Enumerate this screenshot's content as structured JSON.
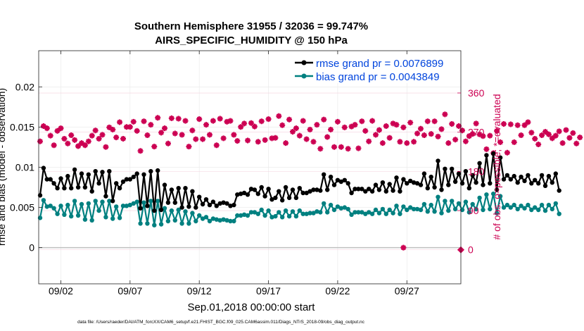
{
  "chart_data": {
    "type": "line",
    "title": "Southern Hemisphere 31955 / 32036 = 99.747%",
    "subtitle": "AIRS_SPECIFIC_HUMIDITY @ 150 hPa",
    "xlabel": "Sep.01,2018 00:00:00 start",
    "ylabel_left": "rmse and bias (model - observation)",
    "ylabel_right": "# of obs: o=possible; *=evaluated",
    "footnote": "data file: /Users/raeder/DAI/ATM_forcXX/CAM6_setup/f.e21.FHIST_BGC.f09_025.CAM6assim.011/Diags_NTrS_2018-09/obs_diag_output.nc",
    "xlim": [
      0.4,
      30.9
    ],
    "ylim_left": [
      -0.0045,
      0.0245
    ],
    "ylim_right": [
      -78,
      457
    ],
    "x_ticks": [
      {
        "label": "09/02",
        "x": 2
      },
      {
        "label": "09/07",
        "x": 7
      },
      {
        "label": "09/12",
        "x": 12
      },
      {
        "label": "09/17",
        "x": 17
      },
      {
        "label": "09/22",
        "x": 22
      },
      {
        "label": "09/27",
        "x": 27
      }
    ],
    "y_ticks_left": [
      {
        "label": "0",
        "v": 0
      },
      {
        "label": "0.005",
        "v": 0.005
      },
      {
        "label": "0.01",
        "v": 0.01
      },
      {
        "label": "0.015",
        "v": 0.015
      },
      {
        "label": "0.02",
        "v": 0.02
      }
    ],
    "y_ticks_right": [
      {
        "label": "0",
        "v": 0
      },
      {
        "label": "90",
        "v": 90
      },
      {
        "label": "180",
        "v": 180
      },
      {
        "label": "270",
        "v": 270
      },
      {
        "label": "360",
        "v": 360
      }
    ],
    "legend": [
      {
        "label": "rmse grand pr = 0.0076899",
        "color": "#000000"
      },
      {
        "label": "bias grand pr = 0.0043849",
        "color": "#008080"
      }
    ],
    "colors": {
      "rmse": "#000000",
      "bias": "#008080",
      "obs": "#cc0052",
      "legend_text": "#0044dd",
      "zero_line": "#c0c0c0"
    },
    "x_start": 0.5,
    "x_step": 0.25,
    "series": [
      {
        "name": "rmse",
        "values": [
          0.0065,
          0.0099,
          0.0085,
          0.0085,
          0.008,
          0.0074,
          0.0086,
          0.0074,
          0.0089,
          0.0074,
          0.0097,
          0.0075,
          0.0092,
          0.0075,
          0.0091,
          0.007,
          0.0095,
          0.008,
          0.0094,
          0.0064,
          0.0095,
          0.0058,
          0.008,
          0.0074,
          0.0082,
          0.0085,
          0.0085,
          0.0088,
          0.0092,
          0.0049,
          0.0091,
          0.0052,
          0.0095,
          0.0046,
          0.0096,
          0.0047,
          0.0078,
          0.0056,
          0.0072,
          0.0056,
          0.0074,
          0.005,
          0.0074,
          0.0051,
          0.007,
          0.005,
          0.0063,
          0.0054,
          0.006,
          0.0053,
          0.0057,
          0.0052,
          0.0055,
          0.0056,
          0.0055,
          0.0052,
          0.0053,
          0.0066,
          0.0067,
          0.0068,
          0.0066,
          0.0073,
          0.0072,
          0.0067,
          0.0075,
          0.0064,
          0.0073,
          0.006,
          0.0062,
          0.007,
          0.0059,
          0.0075,
          0.0062,
          0.0072,
          0.0062,
          0.0074,
          0.0068,
          0.0068,
          0.007,
          0.0072,
          0.0072,
          0.0071,
          0.0091,
          0.0072,
          0.0088,
          0.0078,
          0.0084,
          0.0082,
          0.0084,
          0.008,
          0.0068,
          0.0073,
          0.0073,
          0.0073,
          0.007,
          0.0073,
          0.007,
          0.0078,
          0.0072,
          0.0081,
          0.007,
          0.0079,
          0.0071,
          0.0087,
          0.007,
          0.0085,
          0.008,
          0.0083,
          0.0081,
          0.008,
          0.0078,
          0.0092,
          0.0074,
          0.0088,
          0.0075,
          0.0108,
          0.0072,
          0.0098,
          0.0078,
          0.0098,
          0.0082,
          0.0092,
          0.008,
          0.0095,
          0.0074,
          0.009,
          0.0081,
          0.0105,
          0.0078,
          0.0115,
          0.008,
          0.0117,
          0.0072,
          0.0112,
          0.0085,
          0.009,
          0.0085,
          0.0089,
          0.0081,
          0.0088,
          0.0083,
          0.009,
          0.008,
          0.0084,
          0.008,
          0.009,
          0.0077,
          0.0089,
          0.0081,
          0.0092,
          0.0071
        ]
      },
      {
        "name": "bias",
        "values": [
          0.0037,
          0.0059,
          0.0051,
          0.0052,
          0.0049,
          0.0042,
          0.0052,
          0.0041,
          0.0053,
          0.0039,
          0.0058,
          0.004,
          0.0054,
          0.0035,
          0.0055,
          0.0034,
          0.0058,
          0.0046,
          0.0057,
          0.0038,
          0.0058,
          0.0036,
          0.0051,
          0.0037,
          0.0052,
          0.0052,
          0.0053,
          0.0055,
          0.0057,
          0.003,
          0.0056,
          0.003,
          0.0058,
          0.0028,
          0.0058,
          0.0029,
          0.0049,
          0.0033,
          0.0046,
          0.0034,
          0.0047,
          0.003,
          0.0045,
          0.003,
          0.0043,
          0.0033,
          0.004,
          0.0036,
          0.0038,
          0.0033,
          0.0036,
          0.0035,
          0.0034,
          0.0035,
          0.0034,
          0.0033,
          0.0033,
          0.004,
          0.004,
          0.0041,
          0.004,
          0.0044,
          0.0044,
          0.0042,
          0.0047,
          0.004,
          0.0046,
          0.0038,
          0.0039,
          0.0044,
          0.0038,
          0.0046,
          0.0039,
          0.0045,
          0.0039,
          0.0046,
          0.0042,
          0.0042,
          0.0043,
          0.0043,
          0.0045,
          0.0044,
          0.0055,
          0.0044,
          0.0053,
          0.0047,
          0.0051,
          0.0049,
          0.005,
          0.0048,
          0.0041,
          0.0044,
          0.0044,
          0.0044,
          0.0042,
          0.0044,
          0.0042,
          0.0047,
          0.0043,
          0.0048,
          0.0042,
          0.0047,
          0.0043,
          0.0052,
          0.0042,
          0.0051,
          0.0047,
          0.005,
          0.0048,
          0.0048,
          0.0047,
          0.0054,
          0.0045,
          0.0053,
          0.0045,
          0.0063,
          0.0043,
          0.0058,
          0.0046,
          0.0058,
          0.0048,
          0.0055,
          0.0047,
          0.0057,
          0.0044,
          0.0054,
          0.0048,
          0.0062,
          0.0047,
          0.0066,
          0.0048,
          0.0067,
          0.0043,
          0.0064,
          0.005,
          0.0053,
          0.005,
          0.0053,
          0.0048,
          0.0052,
          0.0049,
          0.0053,
          0.0047,
          0.005,
          0.0047,
          0.0053,
          0.0046,
          0.0053,
          0.0048,
          0.0055,
          0.0042
        ]
      },
      {
        "name": "obs",
        "values": [
          249,
          284,
          279,
          262,
          240,
          273,
          279,
          255,
          244,
          263,
          252,
          238,
          245,
          240,
          249,
          262,
          274,
          255,
          264,
          236,
          281,
          276,
          258,
          293,
          255,
          282,
          282,
          294,
          273,
          227,
          295,
          263,
          287,
          237,
          303,
          269,
          279,
          244,
          302,
          267,
          301,
          264,
          296,
          237,
          274,
          254,
          300,
          254,
          287,
          264,
          296,
          240,
          301,
          256,
          294,
          296,
          264,
          250,
          282,
          290,
          251,
          291,
          283,
          248,
          295,
          252,
          300,
          256,
          257,
          307,
          286,
          245,
          299,
          271,
          279,
          262,
          296,
          254,
          276,
          248,
          287,
          232,
          299,
          259,
          276,
          236,
          294,
          236,
          281,
          232,
          283,
          287,
          233,
          295,
          273,
          249,
          296,
          264,
          275,
          245,
          284,
          257,
          290,
          287,
          248,
          281,
          245,
          292,
          248,
          267,
          278,
          263,
          295,
          266,
          295,
          260,
          277,
          311,
          245,
          289,
          253,
          284,
          274,
          249,
          261,
          266,
          290,
          265,
          261,
          231,
          262,
          222,
          273,
          247,
          289,
          223,
          288,
          247,
          286,
          263,
          286,
          293,
          269,
          255,
          242,
          263,
          271,
          265,
          256,
          262,
          272,
          245,
          275,
          257,
          268,
          244,
          258
        ]
      }
    ],
    "obs_outlier": {
      "x": 26.75,
      "v": 5
    },
    "obs_end": {
      "x": 30.9,
      "v": 0
    }
  }
}
